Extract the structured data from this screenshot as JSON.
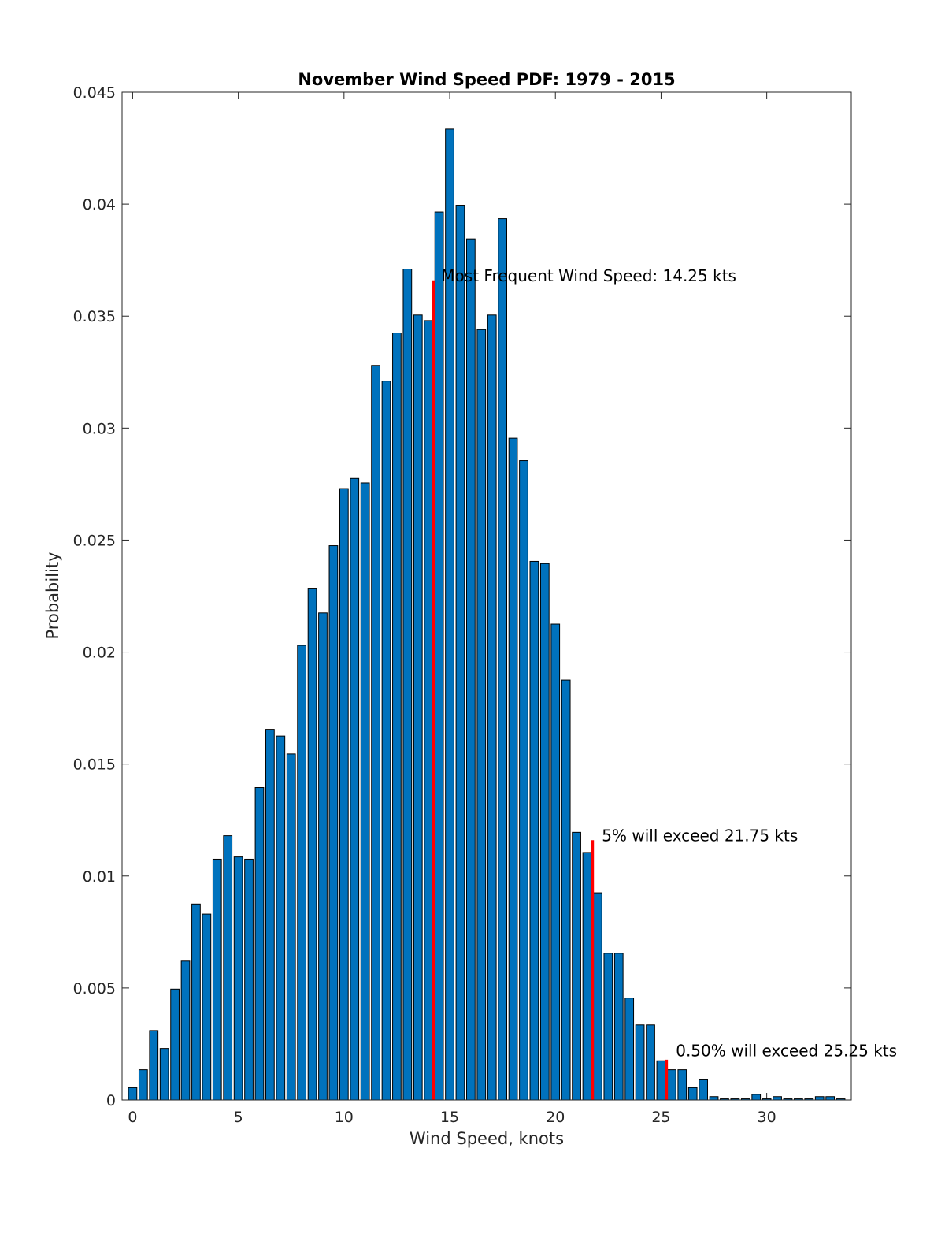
{
  "chart_data": {
    "type": "bar",
    "title": "November Wind Speed PDF: 1979 - 2015",
    "xlabel": "Wind Speed, knots",
    "ylabel": "Probability",
    "xlim": [
      -0.5,
      34
    ],
    "ylim": [
      0,
      0.045
    ],
    "bar_width": 0.4,
    "bar_color": "#0072BD",
    "marker_color": "#FF0000",
    "xticks": [
      0,
      5,
      10,
      15,
      20,
      25,
      30
    ],
    "xtick_labels": [
      "0",
      "5",
      "10",
      "15",
      "20",
      "25",
      "30"
    ],
    "yticks": [
      0,
      0.005,
      0.01,
      0.015,
      0.02,
      0.025,
      0.03,
      0.035,
      0.04,
      0.045
    ],
    "ytick_labels": [
      "0",
      "0.005",
      "0.01",
      "0.015",
      "0.02",
      "0.025",
      "0.03",
      "0.035",
      "0.04",
      "0.045"
    ],
    "x": [
      0,
      0.5,
      1,
      1.5,
      2,
      2.5,
      3,
      3.5,
      4,
      4.5,
      5,
      5.5,
      6,
      6.5,
      7,
      7.5,
      8,
      8.5,
      9,
      9.5,
      10,
      10.5,
      11,
      11.5,
      12,
      12.5,
      13,
      13.5,
      14,
      14.5,
      15,
      15.5,
      16,
      16.5,
      17,
      17.5,
      18,
      18.5,
      19,
      19.5,
      20,
      20.5,
      21,
      21.5,
      22,
      22.5,
      23,
      23.5,
      24,
      24.5,
      25,
      25.5,
      26,
      26.5,
      27,
      27.5,
      28,
      28.5,
      29,
      29.5,
      30,
      30.5,
      31,
      31.5,
      32,
      32.5,
      33,
      33.5
    ],
    "values": [
      0.00055,
      0.00135,
      0.0031,
      0.0023,
      0.00495,
      0.0062,
      0.00875,
      0.0083,
      0.01075,
      0.0118,
      0.01085,
      0.01075,
      0.01395,
      0.01655,
      0.01625,
      0.01545,
      0.0203,
      0.02285,
      0.02175,
      0.02475,
      0.0273,
      0.02775,
      0.02755,
      0.0328,
      0.0321,
      0.03425,
      0.0371,
      0.03505,
      0.0348,
      0.03965,
      0.04335,
      0.03995,
      0.03845,
      0.0344,
      0.03505,
      0.03935,
      0.02955,
      0.02855,
      0.02405,
      0.02395,
      0.02125,
      0.01875,
      0.01195,
      0.01105,
      0.00925,
      0.00655,
      0.00655,
      0.00455,
      0.00335,
      0.00335,
      0.00175,
      0.00135,
      0.00135,
      0.00055,
      0.0009,
      0.00015,
      5e-05,
      5e-05,
      5e-05,
      0.00025,
      5e-05,
      0.00015,
      5e-05,
      5e-05,
      5e-05,
      0.00015,
      0.00015,
      5e-05
    ],
    "markers": [
      {
        "x": 14.25,
        "y": 0.0366,
        "label": "Most Frequent Wind Speed: 14.25 kts",
        "label_x": 14.6,
        "label_y": 0.0368
      },
      {
        "x": 21.75,
        "y": 0.0116,
        "label": "5% will exceed 21.75 kts",
        "label_x": 22.2,
        "label_y": 0.0118
      },
      {
        "x": 25.25,
        "y": 0.0018,
        "label": "0.50% will exceed 25.25 kts",
        "label_x": 25.7,
        "label_y": 0.0022
      }
    ]
  }
}
